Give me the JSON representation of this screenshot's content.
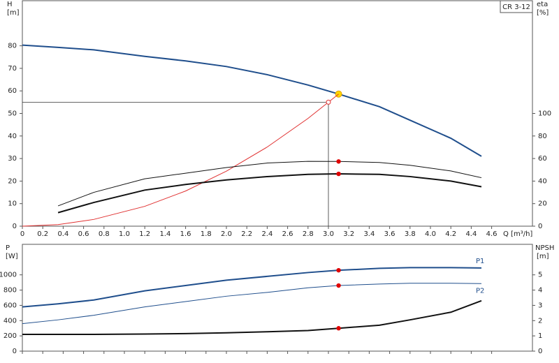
{
  "chart_data": [
    {
      "type": "line",
      "model": "CR 3-12",
      "ylabel": "H",
      "yunit": "[m]",
      "y2label": "eta",
      "y2unit": "[%]",
      "xlabel": "Q [m³/h]",
      "x": [
        0,
        0.35,
        0.7,
        1.2,
        1.6,
        2.0,
        2.4,
        2.8,
        3.1,
        3.5,
        3.8,
        4.2,
        4.5
      ],
      "xlim": [
        0,
        5
      ],
      "xticks": [
        0,
        0.2,
        0.4,
        0.6,
        0.8,
        {
          "value": 1,
          "label": "1.0"
        },
        1.2,
        1.4,
        1.6,
        1.8,
        {
          "value": 2,
          "label": "2.0"
        },
        2.2,
        2.4,
        2.6,
        2.8,
        {
          "value": 3,
          "label": "3.0"
        },
        3.2,
        3.4,
        3.6,
        3.8,
        {
          "value": 4,
          "label": "4.0"
        },
        4.2,
        4.4,
        4.6
      ],
      "show_xtick_labels": true,
      "ylim": [
        0,
        100
      ],
      "yticks": [
        0,
        10,
        20,
        30,
        40,
        50,
        60,
        70,
        80
      ],
      "y2lim": [
        0,
        200
      ],
      "y2ticks": [
        0,
        20,
        40,
        60,
        80,
        100
      ],
      "marker_at": 3.1,
      "duty_point": {
        "x": 3.0,
        "y": 55
      },
      "series": [
        {
          "color": "#1f4e8c",
          "width": 2,
          "marker_color": "#ffd700",
          "values": [
            80.3,
            79.3,
            78.2,
            75.3,
            73.3,
            70.8,
            67.2,
            62.6,
            58.6,
            53,
            47,
            39,
            31
          ]
        },
        {
          "color": "#e03030",
          "width": 1,
          "values": [
            0,
            0.7,
            3,
            8.8,
            15.6,
            24.4,
            35.1,
            47.8,
            58.6,
            null,
            null,
            null,
            null
          ]
        },
        {
          "color": "#111111",
          "width": 1,
          "axis": "y2",
          "marker_color": "#e00000",
          "values": [
            null,
            18,
            30,
            42,
            47,
            52,
            56,
            57.5,
            57.4,
            56.5,
            54,
            49,
            43
          ]
        },
        {
          "color": "#111111",
          "width": 2,
          "axis": "y2",
          "marker_color": "#e00000",
          "values": [
            null,
            12,
            21,
            32,
            37,
            41,
            44,
            46,
            46.4,
            46,
            44,
            40,
            35
          ]
        }
      ]
    },
    {
      "type": "line",
      "ylabel": "P",
      "yunit": "[W]",
      "y2label": "NPSH",
      "y2unit": "[m]",
      "x": [
        0,
        0.35,
        0.7,
        1.2,
        1.6,
        2.0,
        2.4,
        2.8,
        3.1,
        3.5,
        3.8,
        4.2,
        4.5
      ],
      "xlim": [
        0,
        5
      ],
      "xticks": [
        0,
        0.2,
        0.4,
        0.6,
        0.8,
        1,
        1.2,
        1.4,
        1.6,
        1.8,
        2,
        2.2,
        2.4,
        2.6,
        2.8,
        3,
        3.2,
        3.4,
        3.6,
        3.8,
        4,
        4.2,
        4.4,
        4.6
      ],
      "show_xtick_labels": false,
      "ylim": [
        0,
        1400
      ],
      "yticks": [
        0,
        200,
        400,
        600,
        800,
        1000
      ],
      "y2lim": [
        0,
        7
      ],
      "y2ticks": [
        0,
        1,
        2,
        3,
        4,
        5
      ],
      "marker_at": 3.1,
      "series": [
        {
          "name": "P1",
          "color": "#1f4e8c",
          "width": 2,
          "marker_color": "#e00000",
          "values": [
            580,
            620,
            670,
            790,
            860,
            930,
            980,
            1030,
            1060,
            1085,
            1095,
            1095,
            1090
          ]
        },
        {
          "name": "P2",
          "color": "#1f4e8c",
          "width": 1,
          "marker_color": "#e00000",
          "values": [
            360,
            410,
            470,
            580,
            650,
            720,
            770,
            830,
            860,
            880,
            890,
            890,
            885
          ]
        },
        {
          "color": "#111111",
          "width": 2,
          "axis": "y2",
          "marker_color": "#e00000",
          "values": [
            1.1,
            1.1,
            1.1,
            1.12,
            1.15,
            1.2,
            1.27,
            1.35,
            1.5,
            1.7,
            2.05,
            2.55,
            3.3
          ]
        }
      ]
    }
  ]
}
